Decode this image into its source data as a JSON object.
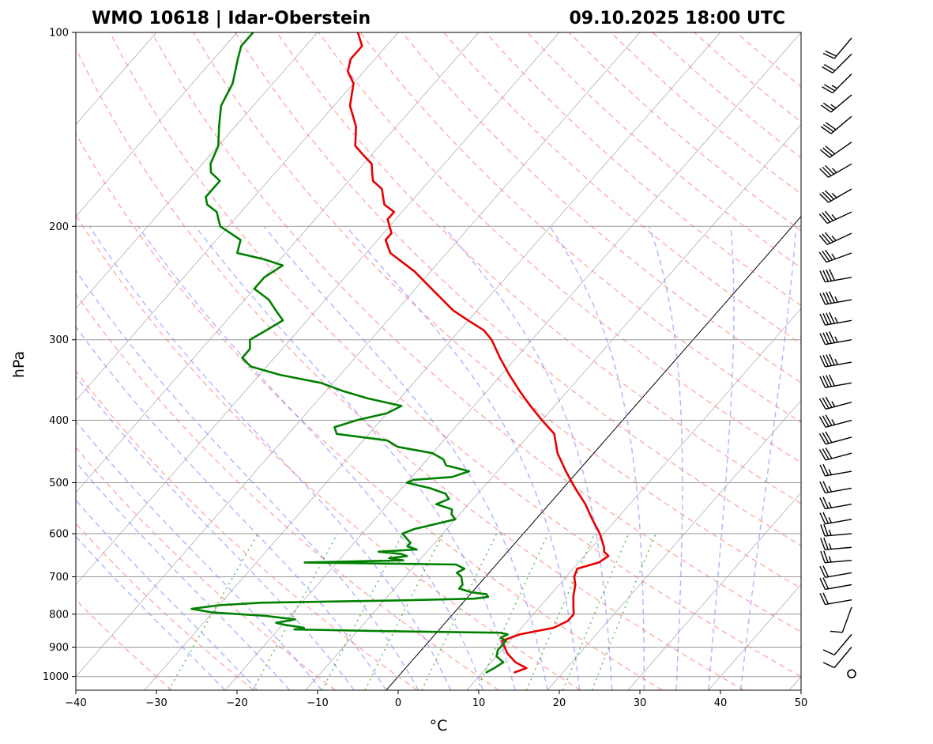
{
  "header": {
    "station": "WMO 10618 | Idar-Oberstein",
    "datetime": "09.10.2025 18:00 UTC"
  },
  "axes": {
    "xlabel": "°C",
    "ylabel": "hPa"
  },
  "colors": {
    "temperature": "#e60000",
    "dewpoint": "#008000",
    "dry_adiabat": "#ff7070",
    "moist_adiabat": "#7070ff",
    "mixing_ratio": "#22aa22",
    "isotherm": "#555555",
    "zero_isotherm": "#000000",
    "grid": "#999999"
  },
  "chart_data": {
    "type": "line",
    "chart_kind": "skew-T log-P diagram",
    "xlim": [
      -40,
      50
    ],
    "ylim": [
      1050,
      100
    ],
    "y_scale": "log",
    "skew_per_decade_C": 70,
    "x_ticks": [
      -40,
      -30,
      -20,
      -10,
      0,
      10,
      20,
      30,
      40,
      50
    ],
    "y_ticks": [
      1000,
      900,
      800,
      700,
      600,
      500,
      400,
      300,
      200,
      100
    ],
    "grid": true,
    "series": [
      {
        "key": "temperature",
        "points": [
          [
            985,
            14.0
          ],
          [
            970,
            15.0
          ],
          [
            950,
            13.0
          ],
          [
            920,
            11.0
          ],
          [
            880,
            9.0
          ],
          [
            860,
            10.5
          ],
          [
            840,
            14.0
          ],
          [
            820,
            15.0
          ],
          [
            800,
            15.0
          ],
          [
            775,
            14.0
          ],
          [
            750,
            13.0
          ],
          [
            720,
            12.0
          ],
          [
            700,
            11.0
          ],
          [
            680,
            10.5
          ],
          [
            665,
            12.5
          ],
          [
            650,
            13.0
          ],
          [
            640,
            12.0
          ],
          [
            630,
            11.5
          ],
          [
            600,
            9.5
          ],
          [
            570,
            7.0
          ],
          [
            540,
            4.5
          ],
          [
            510,
            1.5
          ],
          [
            480,
            -1.5
          ],
          [
            450,
            -4.5
          ],
          [
            420,
            -7.0
          ],
          [
            400,
            -10.0
          ],
          [
            380,
            -13.0
          ],
          [
            360,
            -16.0
          ],
          [
            340,
            -19.0
          ],
          [
            320,
            -22.0
          ],
          [
            300,
            -25.0
          ],
          [
            290,
            -27.0
          ],
          [
            280,
            -30.0
          ],
          [
            270,
            -33.0
          ],
          [
            250,
            -38.0
          ],
          [
            235,
            -42.0
          ],
          [
            220,
            -47.0
          ],
          [
            210,
            -49.0
          ],
          [
            205,
            -49.0
          ],
          [
            200,
            -50.0
          ],
          [
            195,
            -51.0
          ],
          [
            190,
            -51.0
          ],
          [
            185,
            -53.0
          ],
          [
            180,
            -54.0
          ],
          [
            175,
            -55.0
          ],
          [
            170,
            -57.0
          ],
          [
            165,
            -58.0
          ],
          [
            160,
            -59.0
          ],
          [
            155,
            -61.0
          ],
          [
            150,
            -63.0
          ],
          [
            140,
            -65.0
          ],
          [
            130,
            -68.0
          ],
          [
            120,
            -70.0
          ],
          [
            115,
            -72.0
          ],
          [
            110,
            -73.0
          ],
          [
            105,
            -73.0
          ],
          [
            100,
            -75.0
          ]
        ]
      },
      {
        "key": "dewpoint",
        "points": [
          [
            985,
            10.5
          ],
          [
            970,
            11.0
          ],
          [
            950,
            11.5
          ],
          [
            930,
            10.0
          ],
          [
            910,
            9.5
          ],
          [
            880,
            9.5
          ],
          [
            870,
            8.5
          ],
          [
            860,
            9.0
          ],
          [
            855,
            8.0
          ],
          [
            850,
            -7.0
          ],
          [
            845,
            -18.0
          ],
          [
            840,
            -17.0
          ],
          [
            830,
            -20.0
          ],
          [
            825,
            -21.0
          ],
          [
            815,
            -19.0
          ],
          [
            805,
            -23.0
          ],
          [
            795,
            -30.0
          ],
          [
            785,
            -33.0
          ],
          [
            775,
            -30.0
          ],
          [
            768,
            -25.0
          ],
          [
            762,
            -9.0
          ],
          [
            757,
            1.0
          ],
          [
            752,
            2.5
          ],
          [
            745,
            2.0
          ],
          [
            740,
            0.0
          ],
          [
            730,
            -2.0
          ],
          [
            720,
            -2.0
          ],
          [
            710,
            -2.5
          ],
          [
            700,
            -3.0
          ],
          [
            690,
            -4.0
          ],
          [
            680,
            -3.5
          ],
          [
            670,
            -5.0
          ],
          [
            665,
            -24.0
          ],
          [
            660,
            -12.0
          ],
          [
            655,
            -14.0
          ],
          [
            650,
            -12.0
          ],
          [
            645,
            -13.0
          ],
          [
            640,
            -16.0
          ],
          [
            635,
            -11.5
          ],
          [
            628,
            -13.0
          ],
          [
            620,
            -13.0
          ],
          [
            610,
            -14.0
          ],
          [
            600,
            -15.0
          ],
          [
            590,
            -14.0
          ],
          [
            580,
            -12.0
          ],
          [
            570,
            -10.0
          ],
          [
            560,
            -11.0
          ],
          [
            550,
            -11.5
          ],
          [
            540,
            -14.0
          ],
          [
            530,
            -13.0
          ],
          [
            520,
            -14.0
          ],
          [
            510,
            -16.5
          ],
          [
            500,
            -20.0
          ],
          [
            495,
            -19.5
          ],
          [
            490,
            -15.0
          ],
          [
            480,
            -13.5
          ],
          [
            470,
            -17.0
          ],
          [
            460,
            -18.0
          ],
          [
            450,
            -20.0
          ],
          [
            440,
            -25.0
          ],
          [
            430,
            -27.0
          ],
          [
            420,
            -34.0
          ],
          [
            410,
            -35.0
          ],
          [
            400,
            -33.0
          ],
          [
            390,
            -30.0
          ],
          [
            380,
            -29.0
          ],
          [
            370,
            -34.0
          ],
          [
            360,
            -38.0
          ],
          [
            350,
            -41.5
          ],
          [
            340,
            -47.5
          ],
          [
            330,
            -52.0
          ],
          [
            320,
            -54.0
          ],
          [
            310,
            -54.0
          ],
          [
            300,
            -55.0
          ],
          [
            290,
            -54.0
          ],
          [
            280,
            -53.0
          ],
          [
            270,
            -55.0
          ],
          [
            260,
            -57.0
          ],
          [
            250,
            -60.0
          ],
          [
            240,
            -60.0
          ],
          [
            230,
            -59.0
          ],
          [
            225,
            -62.0
          ],
          [
            220,
            -66.0
          ],
          [
            210,
            -67.0
          ],
          [
            200,
            -71.0
          ],
          [
            195,
            -72.0
          ],
          [
            190,
            -73.0
          ],
          [
            185,
            -75.0
          ],
          [
            180,
            -76.0
          ],
          [
            175,
            -76.0
          ],
          [
            170,
            -76.0
          ],
          [
            165,
            -78.0
          ],
          [
            160,
            -79.0
          ],
          [
            150,
            -80.0
          ],
          [
            140,
            -82.0
          ],
          [
            130,
            -84.0
          ],
          [
            120,
            -85.0
          ],
          [
            110,
            -87.0
          ],
          [
            105,
            -88.0
          ],
          [
            100,
            -88.0
          ]
        ]
      }
    ],
    "wind_barbs": [
      {
        "p": 990,
        "speed_kt": 0
      },
      {
        "p": 900,
        "dir_deg": 220,
        "speed_kt": 10
      },
      {
        "p": 860,
        "dir_deg": 220,
        "speed_kt": 10
      },
      {
        "p": 780,
        "dir_deg": 200,
        "speed_kt": 10
      },
      {
        "p": 760,
        "dir_deg": 260,
        "speed_kt": 20
      },
      {
        "p": 720,
        "dir_deg": 260,
        "speed_kt": 20
      },
      {
        "p": 690,
        "dir_deg": 260,
        "speed_kt": 20
      },
      {
        "p": 660,
        "dir_deg": 265,
        "speed_kt": 25
      },
      {
        "p": 630,
        "dir_deg": 265,
        "speed_kt": 25
      },
      {
        "p": 600,
        "dir_deg": 265,
        "speed_kt": 25
      },
      {
        "p": 570,
        "dir_deg": 260,
        "speed_kt": 25
      },
      {
        "p": 540,
        "dir_deg": 260,
        "speed_kt": 25
      },
      {
        "p": 510,
        "dir_deg": 260,
        "speed_kt": 25
      },
      {
        "p": 480,
        "dir_deg": 260,
        "speed_kt": 25
      },
      {
        "p": 450,
        "dir_deg": 255,
        "speed_kt": 30
      },
      {
        "p": 425,
        "dir_deg": 255,
        "speed_kt": 30
      },
      {
        "p": 400,
        "dir_deg": 255,
        "speed_kt": 35
      },
      {
        "p": 375,
        "dir_deg": 255,
        "speed_kt": 35
      },
      {
        "p": 350,
        "dir_deg": 260,
        "speed_kt": 40
      },
      {
        "p": 325,
        "dir_deg": 260,
        "speed_kt": 45
      },
      {
        "p": 300,
        "dir_deg": 260,
        "speed_kt": 45
      },
      {
        "p": 280,
        "dir_deg": 260,
        "speed_kt": 45
      },
      {
        "p": 260,
        "dir_deg": 260,
        "speed_kt": 45
      },
      {
        "p": 240,
        "dir_deg": 260,
        "speed_kt": 40
      },
      {
        "p": 220,
        "dir_deg": 250,
        "speed_kt": 35
      },
      {
        "p": 205,
        "dir_deg": 245,
        "speed_kt": 35
      },
      {
        "p": 190,
        "dir_deg": 245,
        "speed_kt": 35
      },
      {
        "p": 175,
        "dir_deg": 240,
        "speed_kt": 35
      },
      {
        "p": 160,
        "dir_deg": 240,
        "speed_kt": 35
      },
      {
        "p": 148,
        "dir_deg": 235,
        "speed_kt": 30
      },
      {
        "p": 135,
        "dir_deg": 230,
        "speed_kt": 30
      },
      {
        "p": 125,
        "dir_deg": 230,
        "speed_kt": 25
      },
      {
        "p": 116,
        "dir_deg": 225,
        "speed_kt": 25
      },
      {
        "p": 108,
        "dir_deg": 225,
        "speed_kt": 20
      },
      {
        "p": 102,
        "dir_deg": 220,
        "speed_kt": 20
      }
    ]
  }
}
